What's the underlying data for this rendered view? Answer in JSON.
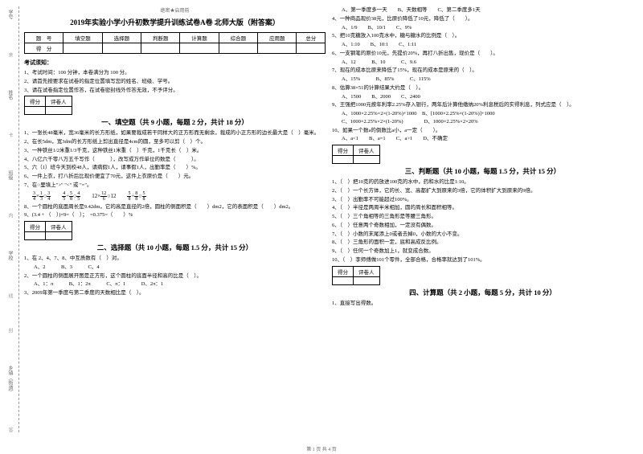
{
  "side": {
    "a": "学号",
    "b": "姓名",
    "c": "班级",
    "d": "学校",
    "e": "乡镇（街道）",
    "dash1": "亲",
    "dash2": "卡",
    "dash3": "内",
    "dash4": "线",
    "dash5": "封",
    "dash6": "答"
  },
  "header": "绝密★启用前",
  "title": "2019年实验小学小升初数学提升训练试卷A卷 北师大版（附答案）",
  "score_table": {
    "r1": [
      "题　号",
      "填空题",
      "选择题",
      "判断题",
      "计算题",
      "综合题",
      "应用题",
      "总分"
    ],
    "r2": [
      "得　分",
      "",
      "",
      "",
      "",
      "",
      "",
      ""
    ]
  },
  "notice_hdr": "考试须知：",
  "notice": [
    "1、考试时间：100 分钟，本卷满分为 100 分。",
    "2、请首先按要求在试卷的指定位置填写您的姓名、班级、学号。",
    "3、请在试卷指定位置作答，在试卷密封线外作答无效，不予评分。"
  ],
  "mini": {
    "a": "得分",
    "b": "评卷人"
  },
  "part1": {
    "hdr": "一、填空题（共 9 小题，每题 2 分，共计 18 分）",
    "q1": "1、一张长48毫米，宽36毫米的长方形纸，如果要裁成若干同样大的正方形而无剩余，裁成的小正方形的边长最大是（　）毫米。",
    "q2": "2、在长5dm，宽3dm的长方形纸上剪出直径是4cm的圆，至多可以剪（　）个。",
    "q3": "3、一种铁丝1/2米重1/3千克，这种铁丝1米重（　）千克，1千克长（　）米。",
    "q4": "4、八亿六千零八万五千写作（　　　），改写成万作单位的数是（　　　）。",
    "q5": "5、六（1）班今天到校48人，请病假1人，请事假1人，出勤率是（　　）%。",
    "q6": "6、一件上衣，打八折后比现价便宜了70元，这件上衣原价是（　　）元。",
    "q7": "7、在○里填上\">\" \"<\" 或 \"=\"。",
    "eq": {
      "a1": "3",
      "a2": "4",
      "a3": "1",
      "a4": "3",
      "b1": "3",
      "b2": "4",
      "c1": "4",
      "c2": "5",
      "c3": "8",
      "d1": "4",
      "d2": "5",
      "e1": "12",
      "e2": "6",
      "f1": "5",
      "f2": "8",
      "f3": "8",
      "g1": "5",
      "g2": "8",
      "o": "○",
      "x": "×",
      "d": "÷",
      "tw": "12"
    },
    "q8": "8、一个圆柱的底面周长是9.42dm，它的高是直径的2倍，圆柱的侧面积是（　　）dm2，它的表面积是（　　）dm2。",
    "q9": "9、(3.4 + （　）)×9=（　）；　=0.375=（　　）%"
  },
  "part2": {
    "hdr": "二、选择题（共 10 小题，每题 1.5 分，共计 15 分）",
    "q1": "1、在 2、4、7、8、中互质数有（　）对。",
    "q1o": "A、2　　　B、3　　　C、4",
    "q2": "2、一个圆柱的侧面展开图是正方形，这个圆柱的底面半径和高的比是（　）。",
    "q2o": "A、1：π　　　B、1：2π　　　C、π：1　　　D、2π：1",
    "q3": "3、2009年第一季度与第二季度的天数相比是（　）。",
    "q3o": "A、第一季度多一天　　B、天数相等　　C、第二季度多1天",
    "q4": "4、一种商品现价38元，比原价降低了10元，降低了（　　）。",
    "q4o": "A、1/9　　B、10/1　　C、9%",
    "q5": "5、把10克糖放入100克水中，糖与糖水的比例是（　）。",
    "q5o": "A、1:10　　B、10:1　　C、1:11",
    "q6": "6、一支钢笔的原价10元，先提价20%，再打八折出售，现价是（　　）。",
    "q6o": "A、12　　　B、10　　　C、9.6",
    "q7": "7、现在的成本比原来降低了15%，现在的成本是原来的（　）。",
    "q7o": "A、15%　　　B、85%　　　C、115%",
    "q8": "8、估算38×51的计算结果大约是（　）。",
    "q8o": "A、1500　　B、2000　　C、2400",
    "q9": "9、王强把1000元按年利率2.25%存入银行，两年后计算他缴纳20%利息税后的实得利息，列式应是（　）。",
    "q9o": "A、1000×2.25%×2×(1-20%)+1000　B、[1000×2.25%×(1-20%)]+1000\nC、1000×2.25%×2×(1-20%)　　　　D、1000×2.25%×2×20%",
    "q10": "10、如果一个数a的倒数比a小，a一定（　　）。",
    "q10o": "A、a<1　　B、a=1　　C、a>1　　D、不确定"
  },
  "part3": {
    "hdr": "三、判断题（共 10 小题，每题 1.5 分，共计 15 分）",
    "q": [
      "1、（　）把10克的药放进100克的水中，药和水的比是1:10。",
      "2、（　）一个长方体，它的长、宽、高都扩大到原来的3倍，它的体积扩大到原来的9倍。",
      "3、（　）出勤率不可能超过100%。",
      "4、（　）半径是两周半米相加，圆的周长和面积相等。",
      "5、（　）三个角相等的三角形是等腰三角形。",
      "6、（　）任意两个奇数相加，一定没有偶数。",
      "7、（　）小数的末尾添上0或者去掉0，小数的大小不变。",
      "8、（　）三角形的面积一定，底和高成反比例。",
      "9、（　）任何一个奇数加上1，就变成合数。",
      "10、（　）李师傅做101个零件，全部合格，合格率就达到了101%。"
    ]
  },
  "part4": {
    "hdr": "四、计算题（共 2 小题，每题 5 分，共计 10 分）",
    "q1": "1、直接写出得数。"
  },
  "footer": "第 1 页  共 4 页"
}
